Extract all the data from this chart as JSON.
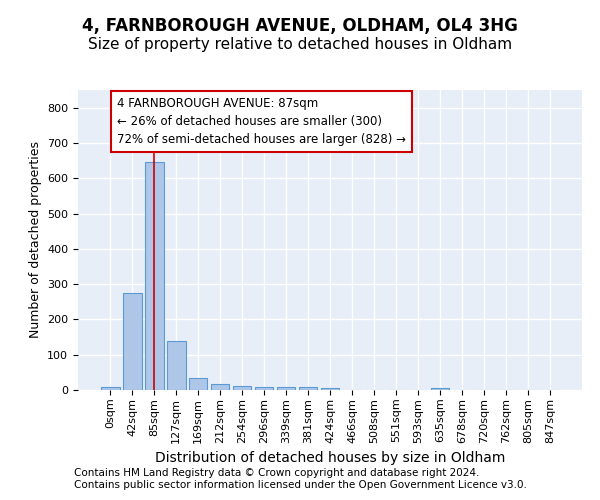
{
  "title": "4, FARNBOROUGH AVENUE, OLDHAM, OL4 3HG",
  "subtitle": "Size of property relative to detached houses in Oldham",
  "xlabel": "Distribution of detached houses by size in Oldham",
  "ylabel": "Number of detached properties",
  "bar_values": [
    8,
    275,
    645,
    138,
    33,
    18,
    11,
    9,
    9,
    9,
    7,
    0,
    0,
    0,
    0,
    6,
    0,
    0,
    0,
    0,
    0
  ],
  "bar_labels": [
    "0sqm",
    "42sqm",
    "85sqm",
    "127sqm",
    "169sqm",
    "212sqm",
    "254sqm",
    "296sqm",
    "339sqm",
    "381sqm",
    "424sqm",
    "466sqm",
    "508sqm",
    "551sqm",
    "593sqm",
    "635sqm",
    "678sqm",
    "720sqm",
    "762sqm",
    "805sqm",
    "847sqm"
  ],
  "bar_color": "#aec6e8",
  "bar_edge_color": "#5b9bd5",
  "property_size": 87,
  "property_bin_index": 2,
  "vline_color": "#cc0000",
  "annotation_text": "4 FARNBOROUGH AVENUE: 87sqm\n← 26% of detached houses are smaller (300)\n72% of semi-detached houses are larger (828) →",
  "annotation_box_color": "white",
  "annotation_box_edge": "#cc0000",
  "ylim": [
    0,
    850
  ],
  "yticks": [
    0,
    100,
    200,
    300,
    400,
    500,
    600,
    700,
    800
  ],
  "background_color": "#e8eef7",
  "grid_color": "white",
  "footnote": "Contains HM Land Registry data © Crown copyright and database right 2024.\nContains public sector information licensed under the Open Government Licence v3.0.",
  "title_fontsize": 12,
  "subtitle_fontsize": 11,
  "xlabel_fontsize": 10,
  "ylabel_fontsize": 9,
  "tick_fontsize": 8,
  "annotation_fontsize": 8.5,
  "footnote_fontsize": 7.5
}
